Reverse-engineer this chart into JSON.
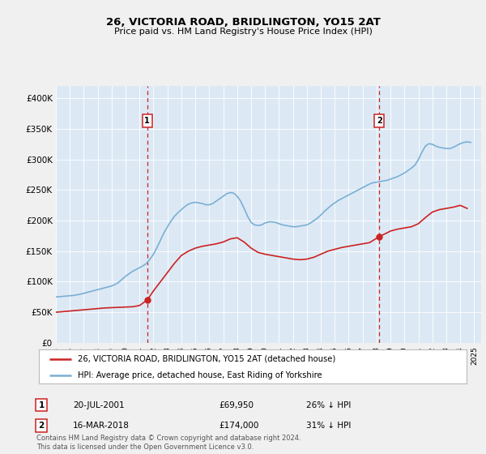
{
  "title": "26, VICTORIA ROAD, BRIDLINGTON, YO15 2AT",
  "subtitle": "Price paid vs. HM Land Registry's House Price Index (HPI)",
  "ytick_labels": [
    "£0",
    "£50K",
    "£100K",
    "£150K",
    "£200K",
    "£250K",
    "£300K",
    "£350K",
    "£400K"
  ],
  "yticks": [
    0,
    50000,
    100000,
    150000,
    200000,
    250000,
    300000,
    350000,
    400000
  ],
  "xlim_start": 1995.0,
  "xlim_end": 2025.5,
  "ylim_min": 0,
  "ylim_max": 420000,
  "background_color": "#dce9f5",
  "fig_bg_color": "#f0f0f0",
  "hpi_color": "#7aafd4",
  "price_color": "#cc2222",
  "marker1_date": 2001.55,
  "marker1_price": 69950,
  "marker1_label": "20-JUL-2001",
  "marker1_amount": "£69,950",
  "marker1_pct": "26% ↓ HPI",
  "marker2_date": 2018.2,
  "marker2_price": 174000,
  "marker2_label": "16-MAR-2018",
  "marker2_amount": "£174,000",
  "marker2_pct": "31% ↓ HPI",
  "legend_label1": "26, VICTORIA ROAD, BRIDLINGTON, YO15 2AT (detached house)",
  "legend_label2": "HPI: Average price, detached house, East Riding of Yorkshire",
  "footer": "Contains HM Land Registry data © Crown copyright and database right 2024.\nThis data is licensed under the Open Government Licence v3.0.",
  "hpi_years": [
    1995.0,
    1995.25,
    1995.5,
    1995.75,
    1996.0,
    1996.25,
    1996.5,
    1996.75,
    1997.0,
    1997.25,
    1997.5,
    1997.75,
    1998.0,
    1998.25,
    1998.5,
    1998.75,
    1999.0,
    1999.25,
    1999.5,
    1999.75,
    2000.0,
    2000.25,
    2000.5,
    2000.75,
    2001.0,
    2001.25,
    2001.5,
    2001.75,
    2002.0,
    2002.25,
    2002.5,
    2002.75,
    2003.0,
    2003.25,
    2003.5,
    2003.75,
    2004.0,
    2004.25,
    2004.5,
    2004.75,
    2005.0,
    2005.25,
    2005.5,
    2005.75,
    2006.0,
    2006.25,
    2006.5,
    2006.75,
    2007.0,
    2007.25,
    2007.5,
    2007.75,
    2008.0,
    2008.25,
    2008.5,
    2008.75,
    2009.0,
    2009.25,
    2009.5,
    2009.75,
    2010.0,
    2010.25,
    2010.5,
    2010.75,
    2011.0,
    2011.25,
    2011.5,
    2011.75,
    2012.0,
    2012.25,
    2012.5,
    2012.75,
    2013.0,
    2013.25,
    2013.5,
    2013.75,
    2014.0,
    2014.25,
    2014.5,
    2014.75,
    2015.0,
    2015.25,
    2015.5,
    2015.75,
    2016.0,
    2016.25,
    2016.5,
    2016.75,
    2017.0,
    2017.25,
    2017.5,
    2017.75,
    2018.0,
    2018.25,
    2018.5,
    2018.75,
    2019.0,
    2019.25,
    2019.5,
    2019.75,
    2020.0,
    2020.25,
    2020.5,
    2020.75,
    2021.0,
    2021.25,
    2021.5,
    2021.75,
    2022.0,
    2022.25,
    2022.5,
    2022.75,
    2023.0,
    2023.25,
    2023.5,
    2023.75,
    2024.0,
    2024.25,
    2024.5,
    2024.75
  ],
  "hpi_values": [
    75000,
    75500,
    76000,
    76500,
    77000,
    77500,
    78500,
    79500,
    81000,
    82500,
    84000,
    85500,
    87000,
    88500,
    90000,
    91500,
    93000,
    95500,
    99000,
    104000,
    109000,
    113000,
    117000,
    120000,
    123000,
    126000,
    130000,
    137000,
    145000,
    156000,
    168000,
    180000,
    190000,
    199000,
    207000,
    213000,
    218000,
    223000,
    227000,
    229000,
    230000,
    229000,
    228000,
    226000,
    226000,
    228000,
    232000,
    236000,
    240000,
    244000,
    246000,
    245000,
    240000,
    232000,
    220000,
    207000,
    197000,
    193000,
    192000,
    193000,
    196000,
    198000,
    198000,
    197000,
    195000,
    193000,
    192000,
    191000,
    190000,
    190000,
    191000,
    192000,
    193000,
    196000,
    200000,
    204000,
    209000,
    215000,
    220000,
    225000,
    229000,
    233000,
    236000,
    239000,
    242000,
    245000,
    248000,
    251000,
    254000,
    257000,
    260000,
    262000,
    263000,
    264000,
    265000,
    266000,
    268000,
    270000,
    272000,
    275000,
    278000,
    282000,
    286000,
    291000,
    300000,
    312000,
    322000,
    326000,
    325000,
    322000,
    320000,
    319000,
    318000,
    318000,
    320000,
    323000,
    326000,
    328000,
    329000,
    328000
  ],
  "price_years": [
    1995.0,
    1995.5,
    1996.0,
    1996.5,
    1997.0,
    1997.5,
    1998.0,
    1998.5,
    1999.0,
    1999.5,
    2000.0,
    2000.5,
    2001.0,
    2001.55,
    2002.0,
    2002.5,
    2003.0,
    2003.5,
    2004.0,
    2004.5,
    2005.0,
    2005.5,
    2006.0,
    2006.5,
    2007.0,
    2007.5,
    2008.0,
    2008.5,
    2009.0,
    2009.5,
    2010.0,
    2010.5,
    2011.0,
    2011.5,
    2012.0,
    2012.5,
    2013.0,
    2013.5,
    2014.0,
    2014.5,
    2015.0,
    2015.5,
    2016.0,
    2016.5,
    2017.0,
    2017.5,
    2018.2,
    2018.75,
    2019.0,
    2019.5,
    2020.0,
    2020.5,
    2021.0,
    2021.5,
    2022.0,
    2022.5,
    2023.0,
    2023.5,
    2024.0,
    2024.5
  ],
  "price_values": [
    50000,
    51000,
    52000,
    53000,
    54000,
    55000,
    56000,
    57000,
    57500,
    58000,
    58500,
    59000,
    61000,
    69950,
    85000,
    100000,
    115000,
    130000,
    143000,
    150000,
    155000,
    158000,
    160000,
    162000,
    165000,
    170000,
    172000,
    165000,
    155000,
    148000,
    145000,
    143000,
    141000,
    139000,
    137000,
    136000,
    137000,
    140000,
    145000,
    150000,
    153000,
    156000,
    158000,
    160000,
    162000,
    164000,
    174000,
    180000,
    183000,
    186000,
    188000,
    190000,
    195000,
    205000,
    214000,
    218000,
    220000,
    222000,
    225000,
    220000
  ]
}
